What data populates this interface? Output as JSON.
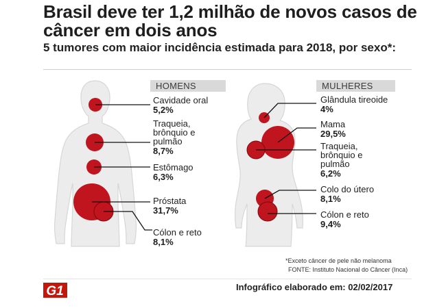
{
  "header": {
    "title": "Brasil deve ter 1,2 milhão de novos casos de câncer em dois anos",
    "subtitle": "5 tumores com maior incidência estimada para 2018, por sexo*:"
  },
  "men": {
    "label": "HOMENS",
    "items": [
      {
        "name": "Cavidade oral",
        "value": "5,2%"
      },
      {
        "name": "Traqueia, brônquio e pulmão",
        "value": "8,7%"
      },
      {
        "name": "Estômago",
        "value": "6,3%"
      },
      {
        "name": "Próstata",
        "value": "31,7%"
      },
      {
        "name": "Cólon e reto",
        "value": "8,1%"
      }
    ]
  },
  "women": {
    "label": "MULHERES",
    "items": [
      {
        "name": "Glândula tireoide",
        "value": "4%"
      },
      {
        "name": "Mama",
        "value": "29,5%"
      },
      {
        "name": "Traqueia, brônquio e pulmão",
        "value": "6,2%"
      },
      {
        "name": "Colo do útero",
        "value": "8,1%"
      },
      {
        "name": "Cólon e reto",
        "value": "9,4%"
      }
    ]
  },
  "footnote": "*Exceto câncer de pele não melanoma",
  "source": "FONTE: Instituto Nacional do Câncer (Inca)",
  "logo": "G1",
  "credit": "Infográfico elaborado em: 02/02/2017",
  "colors": {
    "tumor": "#c0141e",
    "body": "#ececec",
    "outline": "#d6d6d6",
    "logo": "#c4170c",
    "leader": "#111111"
  }
}
